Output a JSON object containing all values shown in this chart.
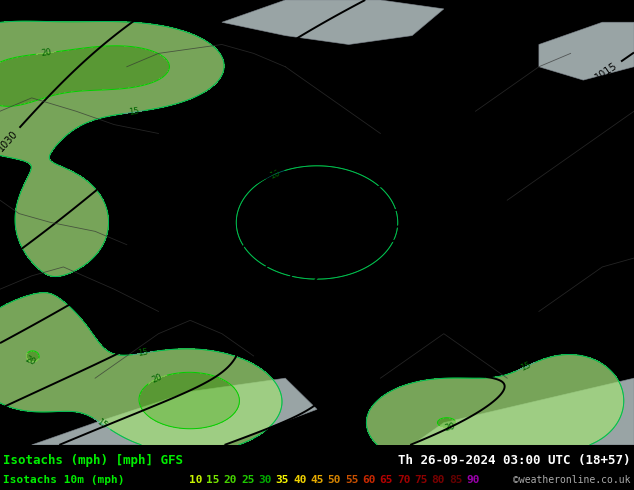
{
  "title_left": "Isotachs (mph) [mph] GFS",
  "title_right": "Th 26-09-2024 03:00 UTC (18+57)",
  "legend_label": "Isotachs 10m (mph)",
  "credit": "©weatheronline.co.uk",
  "legend_values": [
    "10",
    "15",
    "20",
    "25",
    "30",
    "35",
    "40",
    "45",
    "50",
    "55",
    "60",
    "65",
    "70",
    "75",
    "80",
    "85",
    "90"
  ],
  "legend_text_colors": [
    "#c8f500",
    "#78e600",
    "#46d200",
    "#1ec800",
    "#00aa00",
    "#f5f500",
    "#f0d200",
    "#e6aa00",
    "#d28200",
    "#c85000",
    "#c82800",
    "#b40000",
    "#a00000",
    "#8c0000",
    "#780000",
    "#640000",
    "#9900aa"
  ],
  "map_bg": "#b5dc8c",
  "sea_bg": "#c8d8d8",
  "isobar_color": "#000000",
  "bottom_bg": "#000000",
  "text_color_left": "#00ee00",
  "text_color_right": "#ffffff",
  "credit_color": "#aaaaaa",
  "font_size_title": 9,
  "font_size_legend": 8
}
